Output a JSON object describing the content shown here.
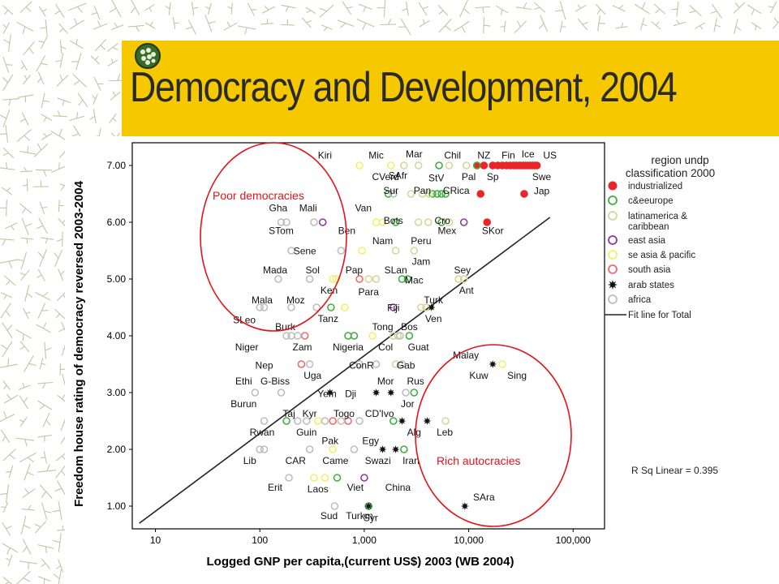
{
  "slide": {
    "title": "Democracy and Development, 2004"
  },
  "colors": {
    "band": "#f6c800",
    "industrialized": "#e8262a",
    "c&eeurope": "#3fae3f",
    "latinamerica & caribbean": "#d8d49a",
    "east asia": "#8a3c9a",
    "se asia & pacific": "#f4ef6a",
    "south asia": "#f06a6a",
    "arab states": "#111111",
    "africa": "#bdbdbd",
    "annotation": "#e0141a"
  },
  "chart_data": {
    "type": "scatter",
    "xlabel": "Logged GNP per capita,(current US$) 2003 (WB 2004)",
    "ylabel": "Freedom house rating of democracy reversed 2003-2004",
    "x_scale": "log",
    "xlim": [
      6,
      200000
    ],
    "ylim": [
      0.6,
      7.4
    ],
    "x_ticks": [
      {
        "value": 10,
        "label": "10"
      },
      {
        "value": 100,
        "label": "100"
      },
      {
        "value": 1000,
        "label": "1,000"
      },
      {
        "value": 10000,
        "label": "10,000"
      },
      {
        "value": 100000,
        "label": "100,000"
      }
    ],
    "y_ticks": [
      {
        "value": 1,
        "label": "1.00"
      },
      {
        "value": 2,
        "label": "2.00"
      },
      {
        "value": 3,
        "label": "3.00"
      },
      {
        "value": 4,
        "label": "4.00"
      },
      {
        "value": 5,
        "label": "5.00"
      },
      {
        "value": 6,
        "label": "6.00"
      },
      {
        "value": 7,
        "label": "7.00"
      }
    ],
    "legend": {
      "title": "region undp classification 2000",
      "entries": [
        "industrialized",
        "c&eeurope",
        "latinamerica & caribbean",
        "east asia",
        "se asia & pacific",
        "south asia",
        "arab states",
        "africa",
        "Fit line for Total"
      ]
    },
    "fit_line": {
      "slope": 1.37,
      "intercept": -0.46
    },
    "r_squared_text": "R Sq Linear = 0.395",
    "annotations": [
      "Poor democracies",
      "Rich autocracies"
    ],
    "labels": [
      {
        "text": "Kiri",
        "x": 420,
        "y": 7.18
      },
      {
        "text": "Mic",
        "x": 1300,
        "y": 7.18
      },
      {
        "text": "Mar",
        "x": 3000,
        "y": 7.2
      },
      {
        "text": "Chil",
        "x": 7000,
        "y": 7.18
      },
      {
        "text": "NZ",
        "x": 14000,
        "y": 7.18
      },
      {
        "text": "Fin",
        "x": 24000,
        "y": 7.18
      },
      {
        "text": "Ice",
        "x": 37000,
        "y": 7.2
      },
      {
        "text": "US",
        "x": 60000,
        "y": 7.18
      },
      {
        "text": "CVerd",
        "x": 1600,
        "y": 6.8
      },
      {
        "text": "SAfr",
        "x": 2100,
        "y": 6.82
      },
      {
        "text": "StV",
        "x": 4900,
        "y": 6.78
      },
      {
        "text": "Pal",
        "x": 10000,
        "y": 6.8
      },
      {
        "text": "Sp",
        "x": 17000,
        "y": 6.8
      },
      {
        "text": "Swe",
        "x": 50000,
        "y": 6.8
      },
      {
        "text": "Sur",
        "x": 1800,
        "y": 6.56
      },
      {
        "text": "Pan",
        "x": 3600,
        "y": 6.56
      },
      {
        "text": "CRica",
        "x": 7600,
        "y": 6.56
      },
      {
        "text": "Jap",
        "x": 50000,
        "y": 6.55
      },
      {
        "text": "Gha",
        "x": 150,
        "y": 6.25
      },
      {
        "text": "Mali",
        "x": 290,
        "y": 6.25
      },
      {
        "text": "Van",
        "x": 980,
        "y": 6.25
      },
      {
        "text": "Bots",
        "x": 1900,
        "y": 6.03
      },
      {
        "text": "Cro",
        "x": 5600,
        "y": 6.03
      },
      {
        "text": "STom",
        "x": 160,
        "y": 5.85
      },
      {
        "text": "Ben",
        "x": 680,
        "y": 5.85
      },
      {
        "text": "Mex",
        "x": 6200,
        "y": 5.85
      },
      {
        "text": "SKor",
        "x": 17000,
        "y": 5.85
      },
      {
        "text": "Nam",
        "x": 1500,
        "y": 5.67
      },
      {
        "text": "Peru",
        "x": 3500,
        "y": 5.67
      },
      {
        "text": "Sene",
        "x": 270,
        "y": 5.49
      },
      {
        "text": "Jam",
        "x": 3500,
        "y": 5.31
      },
      {
        "text": "Mada",
        "x": 140,
        "y": 5.16
      },
      {
        "text": "Sol",
        "x": 320,
        "y": 5.16
      },
      {
        "text": "Pap",
        "x": 800,
        "y": 5.16
      },
      {
        "text": "SLan",
        "x": 2000,
        "y": 5.16
      },
      {
        "text": "Sey",
        "x": 8700,
        "y": 5.16
      },
      {
        "text": "Mac",
        "x": 3000,
        "y": 4.98
      },
      {
        "text": "Ken",
        "x": 460,
        "y": 4.8
      },
      {
        "text": "Para",
        "x": 1100,
        "y": 4.77
      },
      {
        "text": "Ant",
        "x": 9500,
        "y": 4.8
      },
      {
        "text": "Mala",
        "x": 105,
        "y": 4.63
      },
      {
        "text": "Moz",
        "x": 220,
        "y": 4.63
      },
      {
        "text": "Turk",
        "x": 4600,
        "y": 4.63
      },
      {
        "text": "Fiji",
        "x": 1900,
        "y": 4.49
      },
      {
        "text": "Tanz",
        "x": 450,
        "y": 4.3
      },
      {
        "text": "Ven",
        "x": 4600,
        "y": 4.3
      },
      {
        "text": "SLeo",
        "x": 71,
        "y": 4.28
      },
      {
        "text": "Burk",
        "x": 175,
        "y": 4.16
      },
      {
        "text": "Tong",
        "x": 1500,
        "y": 4.16
      },
      {
        "text": "Bos",
        "x": 2700,
        "y": 4.16
      },
      {
        "text": "Niger",
        "x": 75,
        "y": 3.8
      },
      {
        "text": "Zam",
        "x": 255,
        "y": 3.8
      },
      {
        "text": "Nigeria",
        "x": 700,
        "y": 3.8
      },
      {
        "text": "Col",
        "x": 1600,
        "y": 3.8
      },
      {
        "text": "Guat",
        "x": 3300,
        "y": 3.8
      },
      {
        "text": "Malay",
        "x": 9400,
        "y": 3.66
      },
      {
        "text": "Nep",
        "x": 110,
        "y": 3.48
      },
      {
        "text": "ConR",
        "x": 940,
        "y": 3.48
      },
      {
        "text": "Gab",
        "x": 2500,
        "y": 3.48
      },
      {
        "text": "Kuw",
        "x": 12500,
        "y": 3.3
      },
      {
        "text": "Sing",
        "x": 29000,
        "y": 3.3
      },
      {
        "text": "Uga",
        "x": 320,
        "y": 3.3
      },
      {
        "text": "Ethi",
        "x": 70,
        "y": 3.2
      },
      {
        "text": "G-Biss",
        "x": 140,
        "y": 3.2
      },
      {
        "text": "Mor",
        "x": 1600,
        "y": 3.2
      },
      {
        "text": "Rus",
        "x": 3100,
        "y": 3.2
      },
      {
        "text": "Yem",
        "x": 440,
        "y": 2.98
      },
      {
        "text": "Dji",
        "x": 740,
        "y": 2.98
      },
      {
        "text": "Jor",
        "x": 2600,
        "y": 2.8
      },
      {
        "text": "Burun",
        "x": 70,
        "y": 2.8
      },
      {
        "text": "Taj",
        "x": 190,
        "y": 2.63
      },
      {
        "text": "Kyr",
        "x": 300,
        "y": 2.63
      },
      {
        "text": "Togo",
        "x": 640,
        "y": 2.63
      },
      {
        "text": "CD'Ivo",
        "x": 1400,
        "y": 2.63
      },
      {
        "text": "Alg",
        "x": 3000,
        "y": 2.3
      },
      {
        "text": "Leb",
        "x": 5900,
        "y": 2.3
      },
      {
        "text": "Rwan",
        "x": 105,
        "y": 2.3
      },
      {
        "text": "Guin",
        "x": 280,
        "y": 2.3
      },
      {
        "text": "Pak",
        "x": 470,
        "y": 2.15
      },
      {
        "text": "Egy",
        "x": 1150,
        "y": 2.15
      },
      {
        "text": "Lib",
        "x": 80,
        "y": 1.8
      },
      {
        "text": "CAR",
        "x": 220,
        "y": 1.8
      },
      {
        "text": "Came",
        "x": 530,
        "y": 1.8
      },
      {
        "text": "Swazi",
        "x": 1350,
        "y": 1.8
      },
      {
        "text": "Iran",
        "x": 2800,
        "y": 1.8
      },
      {
        "text": "Erit",
        "x": 140,
        "y": 1.33
      },
      {
        "text": "Laos",
        "x": 360,
        "y": 1.3
      },
      {
        "text": "Viet",
        "x": 820,
        "y": 1.33
      },
      {
        "text": "China",
        "x": 2100,
        "y": 1.33
      },
      {
        "text": "SAra",
        "x": 14000,
        "y": 1.16
      },
      {
        "text": "Sud",
        "x": 460,
        "y": 0.83
      },
      {
        "text": "Turkm",
        "x": 900,
        "y": 0.83
      },
      {
        "text": "Syr",
        "x": 1150,
        "y": 0.79
      }
    ],
    "points": [
      {
        "x": 14000,
        "y": 7,
        "r": "industrialized"
      },
      {
        "x": 17000,
        "y": 7,
        "r": "industrialized"
      },
      {
        "x": 21000,
        "y": 7,
        "r": "industrialized"
      },
      {
        "x": 23000,
        "y": 7,
        "r": "industrialized"
      },
      {
        "x": 25000,
        "y": 7,
        "r": "industrialized"
      },
      {
        "x": 27000,
        "y": 7,
        "r": "industrialized"
      },
      {
        "x": 29000,
        "y": 7,
        "r": "industrialized"
      },
      {
        "x": 31000,
        "y": 7,
        "r": "industrialized"
      },
      {
        "x": 33000,
        "y": 7,
        "r": "industrialized"
      },
      {
        "x": 35000,
        "y": 7,
        "r": "industrialized"
      },
      {
        "x": 37000,
        "y": 7,
        "r": "industrialized"
      },
      {
        "x": 39000,
        "y": 7,
        "r": "industrialized"
      },
      {
        "x": 41000,
        "y": 7,
        "r": "industrialized"
      },
      {
        "x": 43000,
        "y": 7,
        "r": "industrialized"
      },
      {
        "x": 45000,
        "y": 7,
        "r": "industrialized"
      },
      {
        "x": 12000,
        "y": 7,
        "r": "industrialized"
      },
      {
        "x": 19000,
        "y": 7,
        "r": "industrialized"
      },
      {
        "x": 13000,
        "y": 6.5,
        "r": "industrialized"
      },
      {
        "x": 34000,
        "y": 6.5,
        "r": "industrialized"
      },
      {
        "x": 15000,
        "y": 6,
        "r": "industrialized"
      },
      {
        "x": 12000,
        "y": 7,
        "r": "c&eeurope"
      },
      {
        "x": 5200,
        "y": 7,
        "r": "c&eeurope"
      },
      {
        "x": 1700,
        "y": 6.5,
        "r": "c&eeurope"
      },
      {
        "x": 4500,
        "y": 6.5,
        "r": "c&eeurope"
      },
      {
        "x": 5000,
        "y": 6.5,
        "r": "c&eeurope"
      },
      {
        "x": 5500,
        "y": 6.5,
        "r": "c&eeurope"
      },
      {
        "x": 6000,
        "y": 6.5,
        "r": "c&eeurope"
      },
      {
        "x": 2000,
        "y": 6,
        "r": "c&eeurope"
      },
      {
        "x": 5500,
        "y": 6,
        "r": "c&eeurope"
      },
      {
        "x": 2300,
        "y": 5,
        "r": "c&eeurope"
      },
      {
        "x": 2600,
        "y": 5,
        "r": "c&eeurope"
      },
      {
        "x": 480,
        "y": 4.5,
        "r": "c&eeurope"
      },
      {
        "x": 2700,
        "y": 4,
        "r": "c&eeurope"
      },
      {
        "x": 700,
        "y": 4,
        "r": "c&eeurope"
      },
      {
        "x": 800,
        "y": 4,
        "r": "c&eeurope"
      },
      {
        "x": 3000,
        "y": 3,
        "r": "c&eeurope"
      },
      {
        "x": 180,
        "y": 2.5,
        "r": "c&eeurope"
      },
      {
        "x": 1900,
        "y": 2.5,
        "r": "c&eeurope"
      },
      {
        "x": 2400,
        "y": 2,
        "r": "c&eeurope"
      },
      {
        "x": 1100,
        "y": 1,
        "r": "c&eeurope"
      },
      {
        "x": 550,
        "y": 1.5,
        "r": "c&eeurope"
      },
      {
        "x": 2400,
        "y": 7,
        "r": "latinamerica & caribbean"
      },
      {
        "x": 3300,
        "y": 7,
        "r": "latinamerica & caribbean"
      },
      {
        "x": 6500,
        "y": 7,
        "r": "latinamerica & caribbean"
      },
      {
        "x": 9500,
        "y": 7,
        "r": "latinamerica & caribbean"
      },
      {
        "x": 1900,
        "y": 6.5,
        "r": "latinamerica & caribbean"
      },
      {
        "x": 2800,
        "y": 6.5,
        "r": "latinamerica & caribbean"
      },
      {
        "x": 3600,
        "y": 6.5,
        "r": "latinamerica & caribbean"
      },
      {
        "x": 4200,
        "y": 6.5,
        "r": "latinamerica & caribbean"
      },
      {
        "x": 3300,
        "y": 6,
        "r": "latinamerica & caribbean"
      },
      {
        "x": 4100,
        "y": 6,
        "r": "latinamerica & caribbean"
      },
      {
        "x": 6500,
        "y": 6,
        "r": "latinamerica & caribbean"
      },
      {
        "x": 2000,
        "y": 5.5,
        "r": "latinamerica & caribbean"
      },
      {
        "x": 3000,
        "y": 5.5,
        "r": "latinamerica & caribbean"
      },
      {
        "x": 8000,
        "y": 5,
        "r": "latinamerica & caribbean"
      },
      {
        "x": 9000,
        "y": 5,
        "r": "latinamerica & caribbean"
      },
      {
        "x": 1100,
        "y": 5,
        "r": "latinamerica & caribbean"
      },
      {
        "x": 3500,
        "y": 4.5,
        "r": "latinamerica & caribbean"
      },
      {
        "x": 3900,
        "y": 4.5,
        "r": "latinamerica & caribbean"
      },
      {
        "x": 1900,
        "y": 4,
        "r": "latinamerica & caribbean"
      },
      {
        "x": 2100,
        "y": 4,
        "r": "latinamerica & caribbean"
      },
      {
        "x": 2000,
        "y": 3.5,
        "r": "latinamerica & caribbean"
      },
      {
        "x": 1300,
        "y": 5,
        "r": "latinamerica & caribbean"
      },
      {
        "x": 6000,
        "y": 2.5,
        "r": "latinamerica & caribbean"
      },
      {
        "x": 400,
        "y": 6,
        "r": "east asia"
      },
      {
        "x": 9000,
        "y": 6,
        "r": "east asia"
      },
      {
        "x": 1000,
        "y": 1.5,
        "r": "east asia"
      },
      {
        "x": 1900,
        "y": 4.5,
        "r": "east asia"
      },
      {
        "x": 900,
        "y": 7,
        "r": "se asia & pacific"
      },
      {
        "x": 1800,
        "y": 7,
        "r": "se asia & pacific"
      },
      {
        "x": 1300,
        "y": 6,
        "r": "se asia & pacific"
      },
      {
        "x": 1500,
        "y": 6,
        "r": "se asia & pacific"
      },
      {
        "x": 950,
        "y": 5.5,
        "r": "se asia & pacific"
      },
      {
        "x": 500,
        "y": 5,
        "r": "se asia & pacific"
      },
      {
        "x": 540,
        "y": 5,
        "r": "se asia & pacific"
      },
      {
        "x": 650,
        "y": 4.5,
        "r": "se asia & pacific"
      },
      {
        "x": 1200,
        "y": 4,
        "r": "se asia & pacific"
      },
      {
        "x": 21000,
        "y": 3.5,
        "r": "se asia & pacific"
      },
      {
        "x": 360,
        "y": 2.5,
        "r": "se asia & pacific"
      },
      {
        "x": 330,
        "y": 1.5,
        "r": "se asia & pacific"
      },
      {
        "x": 420,
        "y": 1.5,
        "r": "se asia & pacific"
      },
      {
        "x": 500,
        "y": 2,
        "r": "se asia & pacific"
      },
      {
        "x": 900,
        "y": 5,
        "r": "south asia"
      },
      {
        "x": 270,
        "y": 4,
        "r": "south asia"
      },
      {
        "x": 250,
        "y": 3.5,
        "r": "south asia"
      },
      {
        "x": 500,
        "y": 2.5,
        "r": "south asia"
      },
      {
        "x": 700,
        "y": 2.5,
        "r": "south asia"
      },
      {
        "x": 4400,
        "y": 4.5,
        "r": "arab states"
      },
      {
        "x": 17000,
        "y": 3.5,
        "r": "arab states"
      },
      {
        "x": 470,
        "y": 3,
        "r": "arab states"
      },
      {
        "x": 1300,
        "y": 3,
        "r": "arab states"
      },
      {
        "x": 1800,
        "y": 3,
        "r": "arab states"
      },
      {
        "x": 2300,
        "y": 2.5,
        "r": "arab states"
      },
      {
        "x": 4000,
        "y": 2.5,
        "r": "arab states"
      },
      {
        "x": 1500,
        "y": 2,
        "r": "arab states"
      },
      {
        "x": 2000,
        "y": 2,
        "r": "arab states"
      },
      {
        "x": 1100,
        "y": 1,
        "r": "arab states"
      },
      {
        "x": 9200,
        "y": 1,
        "r": "arab states"
      },
      {
        "x": 160,
        "y": 6,
        "r": "africa"
      },
      {
        "x": 180,
        "y": 6,
        "r": "africa"
      },
      {
        "x": 330,
        "y": 6,
        "r": "africa"
      },
      {
        "x": 1900,
        "y": 6.5,
        "r": "africa"
      },
      {
        "x": 200,
        "y": 5.5,
        "r": "africa"
      },
      {
        "x": 150,
        "y": 5,
        "r": "africa"
      },
      {
        "x": 100,
        "y": 4.5,
        "r": "africa"
      },
      {
        "x": 110,
        "y": 4.5,
        "r": "africa"
      },
      {
        "x": 200,
        "y": 4.5,
        "r": "africa"
      },
      {
        "x": 350,
        "y": 4.5,
        "r": "africa"
      },
      {
        "x": 180,
        "y": 4,
        "r": "africa"
      },
      {
        "x": 200,
        "y": 4,
        "r": "africa"
      },
      {
        "x": 230,
        "y": 4,
        "r": "africa"
      },
      {
        "x": 900,
        "y": 3.5,
        "r": "africa"
      },
      {
        "x": 1300,
        "y": 3.5,
        "r": "africa"
      },
      {
        "x": 300,
        "y": 3.5,
        "r": "africa"
      },
      {
        "x": 160,
        "y": 3,
        "r": "africa"
      },
      {
        "x": 90,
        "y": 3,
        "r": "africa"
      },
      {
        "x": 110,
        "y": 2.5,
        "r": "africa"
      },
      {
        "x": 230,
        "y": 2.5,
        "r": "africa"
      },
      {
        "x": 280,
        "y": 2.5,
        "r": "africa"
      },
      {
        "x": 420,
        "y": 2.5,
        "r": "africa"
      },
      {
        "x": 600,
        "y": 2.5,
        "r": "africa"
      },
      {
        "x": 900,
        "y": 2.5,
        "r": "africa"
      },
      {
        "x": 100,
        "y": 2,
        "r": "africa"
      },
      {
        "x": 110,
        "y": 2,
        "r": "africa"
      },
      {
        "x": 300,
        "y": 2,
        "r": "africa"
      },
      {
        "x": 800,
        "y": 2,
        "r": "africa"
      },
      {
        "x": 190,
        "y": 1.5,
        "r": "africa"
      },
      {
        "x": 520,
        "y": 1,
        "r": "africa"
      },
      {
        "x": 2200,
        "y": 4,
        "r": "africa"
      },
      {
        "x": 2300,
        "y": 3.5,
        "r": "africa"
      },
      {
        "x": 2500,
        "y": 3,
        "r": "africa"
      },
      {
        "x": 600,
        "y": 5.5,
        "r": "africa"
      },
      {
        "x": 300,
        "y": 5,
        "r": "africa"
      }
    ]
  }
}
